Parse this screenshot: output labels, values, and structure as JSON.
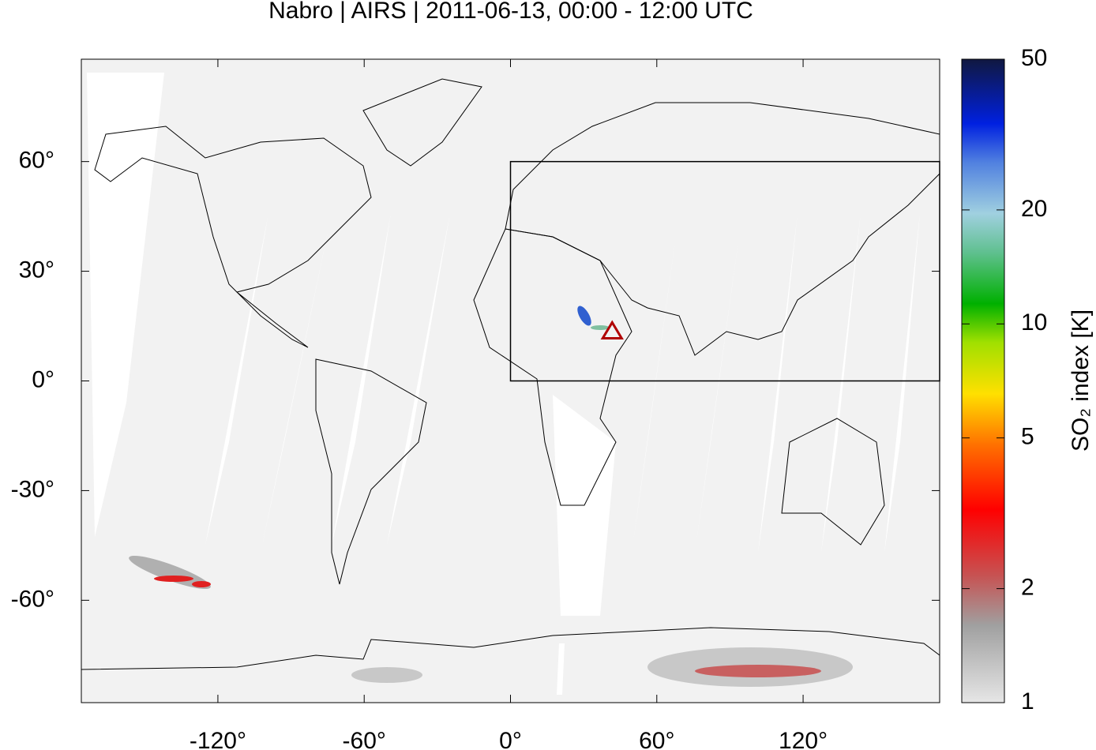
{
  "chart_data": {
    "type": "map",
    "title": "Nabro | AIRS | 2011-06-13, 00:00 - 12:00 UTC",
    "xlim": [
      -176,
      176
    ],
    "ylim": [
      -88,
      88
    ],
    "xticks": [
      {
        "value": -120,
        "label": "-120°"
      },
      {
        "value": -60,
        "label": "-60°"
      },
      {
        "value": 0,
        "label": "0°"
      },
      {
        "value": 60,
        "label": "60°"
      },
      {
        "value": 120,
        "label": "120°"
      }
    ],
    "yticks": [
      {
        "value": 60,
        "label": "60°"
      },
      {
        "value": 30,
        "label": "30°"
      },
      {
        "value": 0,
        "label": "0°"
      },
      {
        "value": -30,
        "label": "-30°"
      },
      {
        "value": -60,
        "label": "-60°"
      }
    ],
    "box": {
      "lon": [
        0,
        180
      ],
      "lat": [
        0,
        60
      ]
    },
    "volcano": {
      "lon": 41.7,
      "lat": 13.4,
      "color": "#b00000"
    },
    "colorbar": {
      "label": "SO₂ index [K]",
      "scale": "log",
      "lim": [
        1,
        50
      ],
      "ticks": [
        1,
        2,
        5,
        10,
        20,
        50
      ]
    }
  }
}
